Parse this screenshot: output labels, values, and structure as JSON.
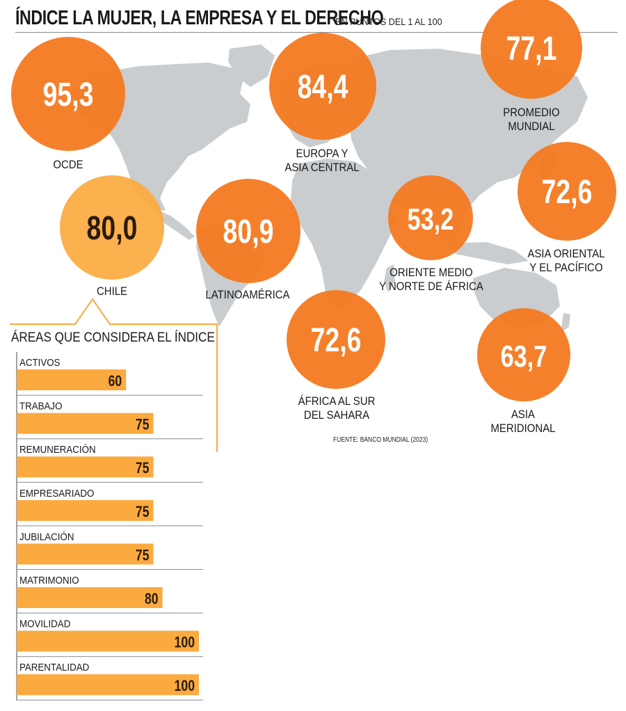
{
  "header": {
    "title": "ÍNDICE LA MUJER, LA EMPRESA Y EL DERECHO",
    "subtitle": "EN PUNTOS DEL 1 AL 100"
  },
  "source": "FUENTE: BANCO MUNDIAL (2023)",
  "colors": {
    "region": "#f47920",
    "chile": "#fbaa3f",
    "bar": "#fbaa3f",
    "map": "#c9cdcf",
    "text": "#1a1a1a"
  },
  "chart_data": [
    {
      "type": "bubble",
      "series": [
        {
          "name": "OCDE",
          "label_lines": [
            "OCDE"
          ],
          "value": "95,3"
        },
        {
          "name": "EUROPA Y ASIA CENTRAL",
          "label_lines": [
            "EUROPA Y",
            "ASIA CENTRAL"
          ],
          "value": "84,4"
        },
        {
          "name": "PROMEDIO MUNDIAL",
          "label_lines": [
            "PROMEDIO",
            "MUNDIAL"
          ],
          "value": "77,1"
        },
        {
          "name": "CHILE",
          "label_lines": [
            "CHILE"
          ],
          "value": "80,0"
        },
        {
          "name": "LATINOAMÉRICA",
          "label_lines": [
            "LATINOAMÉRICA"
          ],
          "value": "80,9"
        },
        {
          "name": "ORIENTE MEDIO Y NORTE DE ÁFRICA",
          "label_lines": [
            "ORIENTE MEDIO",
            "Y NORTE DE ÁFRICA"
          ],
          "value": "53,2"
        },
        {
          "name": "ASIA ORIENTAL Y EL PACÍFICO",
          "label_lines": [
            "ASIA ORIENTAL",
            "Y EL PACÍFICO"
          ],
          "value": "72,6"
        },
        {
          "name": "ÁFRICA AL SUR DEL SAHARA",
          "label_lines": [
            "ÁFRICA AL SUR",
            "DEL SAHARA"
          ],
          "value": "72,6"
        },
        {
          "name": "ASIA MERIDIONAL",
          "label_lines": [
            "ASIA",
            "MERIDIONAL"
          ],
          "value": "63,7"
        }
      ]
    },
    {
      "type": "bar",
      "title": "ÁREAS QUE CONSIDERA EL ÍNDICE",
      "categories": [
        "ACTIVOS",
        "TRABAJO",
        "REMUNERACIÓN",
        "EMPRESARIADO",
        "JUBILACIÓN",
        "MATRIMONIO",
        "MOVILIDAD",
        "PARENTALIDAD"
      ],
      "values": [
        60,
        75,
        75,
        75,
        75,
        80,
        100,
        100
      ],
      "xlim": [
        0,
        100
      ],
      "orientation": "horizontal"
    }
  ]
}
